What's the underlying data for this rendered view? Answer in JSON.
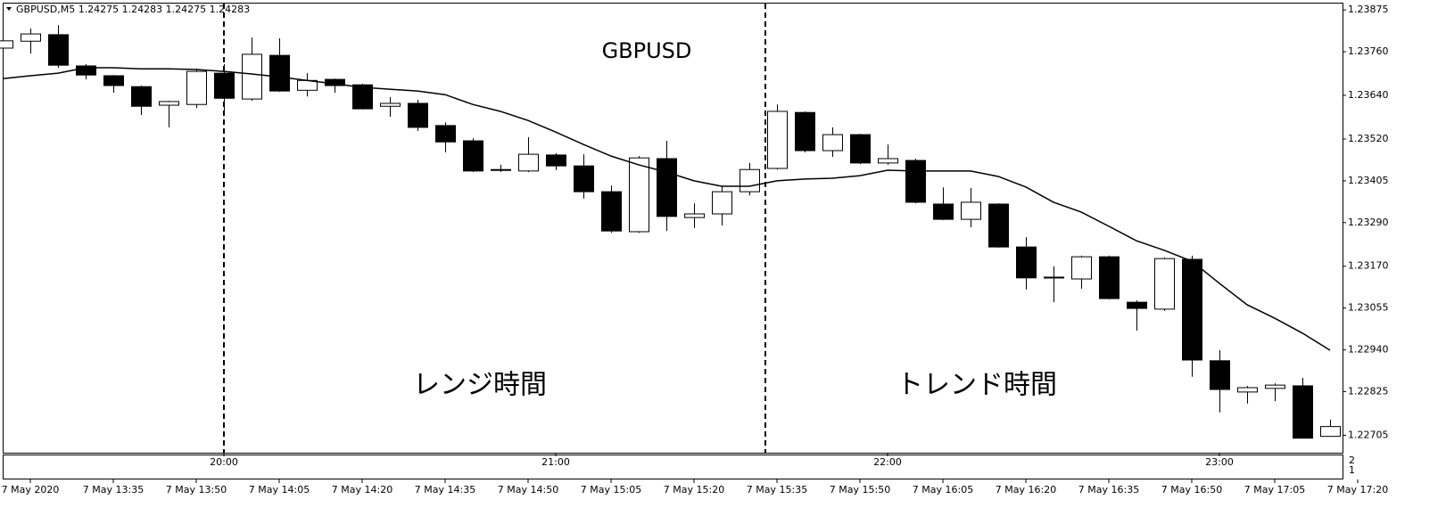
{
  "chart_data": {
    "type": "candlestick",
    "header": "GBPUSD,M5  1.24275 1.24283 1.24275 1.24283",
    "title": "GBPUSD",
    "annotations": [
      "レンジ時間",
      "トレンド時間"
    ],
    "indicator_scale": [
      "2",
      "1"
    ],
    "categories": [
      null,
      "7 May 2020",
      null,
      null,
      "7 May 13:35",
      null,
      null,
      "7 May 13:50",
      null,
      null,
      "7 May 14:05",
      null,
      null,
      "7 May 14:20",
      null,
      null,
      "7 May 14:35",
      null,
      null,
      "7 May 14:50",
      null,
      null,
      "7 May 15:05",
      null,
      null,
      "7 May 15:20",
      null,
      null,
      "7 May 15:35",
      null,
      null,
      "7 May 15:50",
      null,
      null,
      "7 May 16:05",
      null,
      null,
      "7 May 16:20",
      null,
      null,
      "7 May 16:35",
      null,
      null,
      "7 May 16:50",
      null,
      null,
      "7 May 17:05",
      null,
      null,
      "7 May 17:20"
    ],
    "time_labels": [
      null,
      null,
      null,
      null,
      null,
      null,
      null,
      null,
      "20:00",
      null,
      null,
      null,
      null,
      null,
      null,
      null,
      null,
      null,
      null,
      null,
      "21:00",
      null,
      null,
      null,
      null,
      null,
      null,
      null,
      null,
      null,
      null,
      null,
      "22:00",
      null,
      null,
      null,
      null,
      null,
      null,
      null,
      null,
      null,
      null,
      null,
      "23:00",
      null,
      null,
      null,
      null,
      null
    ],
    "open": [
      1.2377,
      1.23789,
      1.23807,
      1.23721,
      1.23694,
      1.23664,
      1.23613,
      1.23615,
      1.23701,
      1.2363,
      1.2375,
      1.23654,
      1.23684,
      1.23669,
      1.2361,
      1.23618,
      1.23557,
      1.23515,
      1.23434,
      1.23432,
      1.23476,
      1.23446,
      1.23375,
      1.23265,
      1.23466,
      1.23304,
      1.23314,
      1.23375,
      1.23439,
      1.23593,
      1.23488,
      1.23532,
      1.23454,
      1.23461,
      1.23341,
      1.23299,
      1.23341,
      1.23223,
      1.23138,
      1.23135,
      1.23196,
      1.23071,
      1.23052,
      1.23189,
      1.2291,
      1.22824,
      1.22834,
      1.22841,
      1.22702,
      null
    ],
    "high": [
      1.238,
      1.23824,
      1.23833,
      1.23726,
      1.23696,
      1.23667,
      1.23625,
      1.23713,
      1.23726,
      1.23799,
      1.23797,
      1.23701,
      1.23686,
      1.23672,
      1.23635,
      1.23628,
      1.23566,
      1.23522,
      1.23449,
      1.23525,
      1.23481,
      1.23478,
      1.23392,
      1.23473,
      1.23515,
      1.23343,
      1.2339,
      1.23454,
      1.23615,
      1.23596,
      1.23552,
      1.23534,
      1.23505,
      1.23466,
      1.23387,
      1.23385,
      1.23343,
      1.2325,
      1.2317,
      1.23199,
      1.23199,
      1.23076,
      1.23194,
      1.23199,
      1.22939,
      1.22841,
      1.22848,
      1.22863,
      1.22748,
      null
    ],
    "low": [
      1.2374,
      1.23755,
      1.23716,
      1.23684,
      1.23647,
      1.23586,
      1.23552,
      1.23605,
      1.23596,
      1.23625,
      1.2365,
      1.23637,
      1.23647,
      1.23601,
      1.23581,
      1.23542,
      1.23483,
      1.23429,
      1.23429,
      1.23429,
      1.23434,
      1.23356,
      1.23262,
      1.23262,
      1.23267,
      1.23275,
      1.23282,
      1.23365,
      1.23436,
      1.23483,
      1.23471,
      1.23451,
      1.23449,
      1.23343,
      1.23297,
      1.23277,
      1.23221,
      1.23106,
      1.23071,
      1.23108,
      1.23079,
      1.22993,
      1.23047,
      1.22866,
      1.22768,
      1.22792,
      1.22799,
      1.22697,
      1.22702,
      null
    ],
    "close": [
      1.2379,
      1.23809,
      1.23723,
      1.23696,
      1.23667,
      1.2361,
      1.23623,
      1.23706,
      1.23632,
      1.23753,
      1.23652,
      1.23681,
      1.23667,
      1.23603,
      1.23618,
      1.23552,
      1.23512,
      1.23432,
      1.23436,
      1.23478,
      1.23446,
      1.23375,
      1.23267,
      1.23468,
      1.23307,
      1.23314,
      1.23375,
      1.23436,
      1.23596,
      1.23488,
      1.23532,
      1.23454,
      1.23466,
      1.23346,
      1.23299,
      1.23346,
      1.23223,
      1.23138,
      1.2314,
      1.23196,
      1.23081,
      1.23054,
      1.23191,
      1.22912,
      1.22831,
      1.22836,
      1.22843,
      1.22697,
      1.22729,
      null
    ],
    "up_color": "#ffffff",
    "down_color": "#000000",
    "series": [
      {
        "color": "#000000",
        "values": [
          1.23686,
          1.23694,
          1.23701,
          1.23716,
          1.23716,
          1.23713,
          1.23713,
          1.23711,
          1.23706,
          1.23699,
          1.23691,
          1.23681,
          1.23672,
          1.23662,
          1.23657,
          1.23652,
          1.23642,
          1.23615,
          1.23596,
          1.23571,
          1.23539,
          1.23505,
          1.23473,
          1.23449,
          1.23429,
          1.23405,
          1.2339,
          1.2339,
          1.23405,
          1.2341,
          1.23412,
          1.23419,
          1.23434,
          1.23432,
          1.23432,
          1.23432,
          1.23417,
          1.23388,
          1.23346,
          1.23319,
          1.2328,
          1.2324,
          1.23214,
          1.23184,
          1.23123,
          1.23064,
          1.23027,
          1.22986,
          1.22939,
          null
        ]
      }
    ],
    "ylim": [
      1.22657,
      1.23895
    ],
    "yticks": [
      1.23875,
      {
        "value": 1.2376,
        "label": "1.23760"
      },
      {
        "value": 1.2364,
        "label": "1.23640"
      },
      {
        "value": 1.2352,
        "label": "1.23520"
      },
      1.23405,
      {
        "value": 1.2329,
        "label": "1.23290"
      },
      {
        "value": 1.2317,
        "label": "1.23170"
      },
      1.23055,
      {
        "value": 1.2294,
        "label": "1.22940"
      },
      1.22825,
      1.22705
    ]
  }
}
